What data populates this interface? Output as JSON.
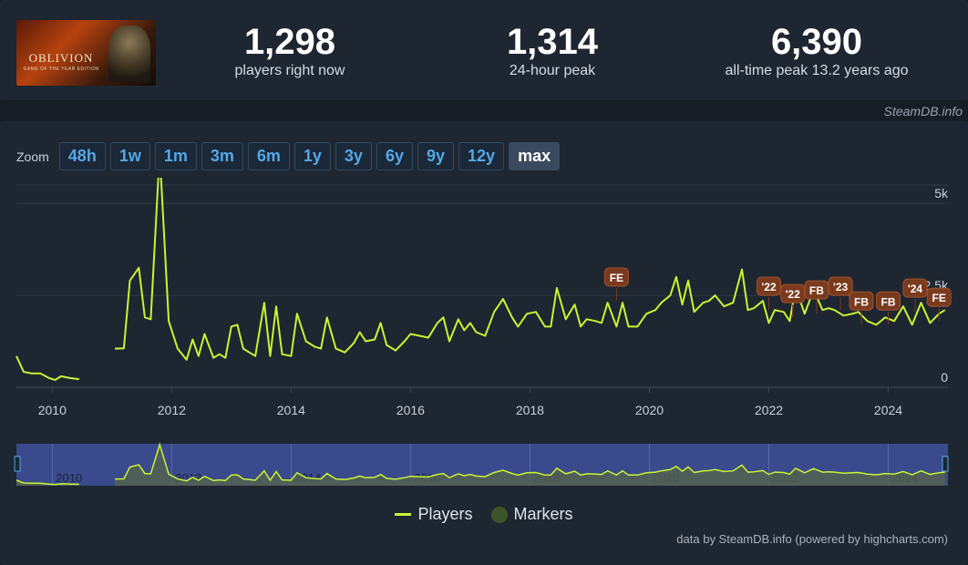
{
  "header": {
    "logo": {
      "title": "OBLIVION",
      "subtitle": "GAME OF THE YEAR EDITION"
    },
    "stats": [
      {
        "value": "1,298",
        "label": "players right now"
      },
      {
        "value": "1,314",
        "label": "24-hour peak"
      },
      {
        "value": "6,390",
        "label": "all-time peak 13.2 years ago"
      }
    ],
    "credit": "SteamDB.info"
  },
  "zoom": {
    "label": "Zoom",
    "buttons": [
      "48h",
      "1w",
      "1m",
      "3m",
      "6m",
      "1y",
      "3y",
      "6y",
      "9y",
      "12y",
      "max"
    ],
    "active": "max"
  },
  "colors": {
    "players": "#c8f533",
    "marker": "#7a3a1e",
    "navigator_bg": "#3a4a8c"
  },
  "chart_data": {
    "type": "line",
    "x_axis": {
      "type": "datetime",
      "min": 2009.4,
      "max": 2025.0,
      "ticks": [
        "2010",
        "2012",
        "2014",
        "2016",
        "2018",
        "2020",
        "2022",
        "2024"
      ]
    },
    "y_axis": {
      "min": 0,
      "max": 5500,
      "ticks": [
        {
          "value": 0,
          "label": "0"
        },
        {
          "value": 2500,
          "label": "2.5k"
        },
        {
          "value": 5000,
          "label": "5k"
        }
      ]
    },
    "grid": true,
    "legend": "bottom-center",
    "series": [
      {
        "name": "Players",
        "segments": [
          [
            [
              2009.4,
              850
            ],
            [
              2009.52,
              420
            ],
            [
              2009.65,
              380
            ],
            [
              2009.8,
              380
            ],
            [
              2009.95,
              250
            ],
            [
              2010.05,
              200
            ],
            [
              2010.15,
              300
            ],
            [
              2010.3,
              250
            ],
            [
              2010.45,
              220
            ]
          ],
          [
            [
              2011.05,
              1050
            ],
            [
              2011.2,
              1060
            ],
            [
              2011.3,
              2900
            ],
            [
              2011.45,
              3250
            ],
            [
              2011.55,
              1900
            ],
            [
              2011.65,
              1850
            ],
            [
              2011.8,
              6390
            ],
            [
              2011.95,
              1800
            ],
            [
              2012.1,
              1050
            ],
            [
              2012.25,
              750
            ],
            [
              2012.35,
              1300
            ],
            [
              2012.45,
              850
            ],
            [
              2012.55,
              1450
            ],
            [
              2012.7,
              800
            ],
            [
              2012.8,
              900
            ],
            [
              2012.9,
              800
            ],
            [
              2013.0,
              1650
            ],
            [
              2013.1,
              1700
            ],
            [
              2013.2,
              1050
            ],
            [
              2013.3,
              950
            ],
            [
              2013.4,
              850
            ],
            [
              2013.55,
              2300
            ],
            [
              2013.65,
              850
            ],
            [
              2013.75,
              2200
            ],
            [
              2013.85,
              900
            ],
            [
              2014.0,
              850
            ],
            [
              2014.1,
              2000
            ],
            [
              2014.25,
              1250
            ],
            [
              2014.4,
              1100
            ],
            [
              2014.5,
              1050
            ],
            [
              2014.6,
              1900
            ],
            [
              2014.75,
              1050
            ],
            [
              2014.9,
              950
            ],
            [
              2015.05,
              1200
            ],
            [
              2015.15,
              1500
            ],
            [
              2015.25,
              1250
            ],
            [
              2015.4,
              1300
            ],
            [
              2015.5,
              1750
            ],
            [
              2015.6,
              1150
            ],
            [
              2015.75,
              1000
            ],
            [
              2015.9,
              1250
            ],
            [
              2016.0,
              1450
            ],
            [
              2016.15,
              1400
            ],
            [
              2016.3,
              1350
            ],
            [
              2016.45,
              1750
            ],
            [
              2016.55,
              1900
            ],
            [
              2016.65,
              1250
            ],
            [
              2016.8,
              1850
            ],
            [
              2016.9,
              1550
            ],
            [
              2017.0,
              1750
            ],
            [
              2017.1,
              1500
            ],
            [
              2017.25,
              1400
            ],
            [
              2017.4,
              2050
            ],
            [
              2017.55,
              2400
            ],
            [
              2017.7,
              1900
            ],
            [
              2017.8,
              1650
            ],
            [
              2017.95,
              2000
            ],
            [
              2018.1,
              2050
            ],
            [
              2018.25,
              1650
            ],
            [
              2018.35,
              1650
            ],
            [
              2018.45,
              2700
            ],
            [
              2018.6,
              1850
            ],
            [
              2018.75,
              2250
            ],
            [
              2018.85,
              1650
            ],
            [
              2018.95,
              1850
            ],
            [
              2019.1,
              1800
            ],
            [
              2019.2,
              1750
            ],
            [
              2019.3,
              2300
            ],
            [
              2019.45,
              1650
            ],
            [
              2019.55,
              2300
            ],
            [
              2019.65,
              1650
            ],
            [
              2019.8,
              1650
            ],
            [
              2019.95,
              2000
            ],
            [
              2020.1,
              2100
            ],
            [
              2020.2,
              2300
            ],
            [
              2020.35,
              2500
            ],
            [
              2020.45,
              3000
            ],
            [
              2020.55,
              2250
            ],
            [
              2020.65,
              2900
            ],
            [
              2020.75,
              2050
            ],
            [
              2020.9,
              2300
            ],
            [
              2021.0,
              2350
            ],
            [
              2021.1,
              2500
            ],
            [
              2021.25,
              2200
            ],
            [
              2021.4,
              2300
            ],
            [
              2021.55,
              3200
            ],
            [
              2021.65,
              2100
            ],
            [
              2021.75,
              2150
            ],
            [
              2021.9,
              2350
            ],
            [
              2022.0,
              1750
            ],
            [
              2022.1,
              2100
            ],
            [
              2022.25,
              2050
            ],
            [
              2022.35,
              1800
            ],
            [
              2022.45,
              2700
            ],
            [
              2022.6,
              2000
            ],
            [
              2022.75,
              2650
            ],
            [
              2022.9,
              2100
            ],
            [
              2023.0,
              2150
            ],
            [
              2023.1,
              2100
            ],
            [
              2023.25,
              1950
            ],
            [
              2023.4,
              2000
            ],
            [
              2023.5,
              2050
            ],
            [
              2023.65,
              1800
            ],
            [
              2023.8,
              1700
            ],
            [
              2023.95,
              1900
            ],
            [
              2024.1,
              1800
            ],
            [
              2024.25,
              2200
            ],
            [
              2024.4,
              1700
            ],
            [
              2024.55,
              2300
            ],
            [
              2024.7,
              1750
            ],
            [
              2024.85,
              2000
            ],
            [
              2024.95,
              2100
            ]
          ]
        ]
      }
    ],
    "markers": [
      {
        "label": "FE",
        "x": 2019.45,
        "y": 2700
      },
      {
        "label": "'22",
        "x": 2022.0,
        "y": 2450
      },
      {
        "label": "'22",
        "x": 2022.4,
        "y": 2250
      },
      {
        "label": "FB",
        "x": 2022.8,
        "y": 2350
      },
      {
        "label": "'23",
        "x": 2023.2,
        "y": 2450
      },
      {
        "label": "FB",
        "x": 2023.55,
        "y": 2050
      },
      {
        "label": "FB",
        "x": 2024.0,
        "y": 2050
      },
      {
        "label": "'24",
        "x": 2024.45,
        "y": 2400
      },
      {
        "label": "FE",
        "x": 2024.85,
        "y": 2150
      }
    ],
    "legend_entries": [
      "Players",
      "Markers"
    ]
  },
  "footer": {
    "credit": "data by SteamDB.info (powered by highcharts.com)"
  }
}
